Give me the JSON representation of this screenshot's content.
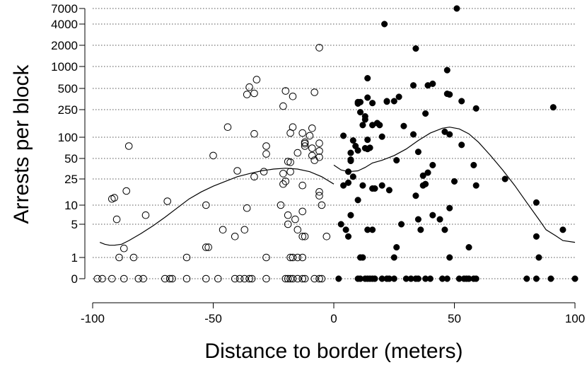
{
  "chart_data": {
    "type": "scatter",
    "title": "",
    "xlabel": "Distance to border (meters)",
    "ylabel": "Arrests per block",
    "xlim": [
      -100,
      100
    ],
    "x_ticks": [
      -100,
      -50,
      0,
      50,
      100
    ],
    "x_tick_labels": [
      "-100",
      "-50",
      "0",
      "50",
      "100"
    ],
    "y_scale": "pseudo-log",
    "y_ticks": [
      0,
      1,
      5,
      10,
      25,
      50,
      100,
      250,
      500,
      1000,
      2000,
      4000,
      7000
    ],
    "y_tick_labels": [
      "0",
      "1",
      "5",
      "10",
      "25",
      "50",
      "100",
      "250",
      "500",
      "1000",
      "2000",
      "4000",
      "7000"
    ],
    "grid": "horizontal dotted lines at each y tick",
    "series": [
      {
        "marker": "open-circle",
        "points": [
          [
            -98,
            0
          ],
          [
            -96,
            0
          ],
          [
            -92,
            0
          ],
          [
            -87,
            0
          ],
          [
            -81,
            0
          ],
          [
            -79,
            0
          ],
          [
            -70,
            0
          ],
          [
            -68,
            0
          ],
          [
            -67,
            0
          ],
          [
            -61,
            0
          ],
          [
            -53,
            0
          ],
          [
            -48,
            0
          ],
          [
            -41,
            0
          ],
          [
            -39,
            0
          ],
          [
            -37,
            0
          ],
          [
            -35,
            0
          ],
          [
            -34,
            0
          ],
          [
            -28,
            0
          ],
          [
            -20,
            0
          ],
          [
            -19,
            0
          ],
          [
            -18,
            0
          ],
          [
            -17,
            0
          ],
          [
            -15,
            0
          ],
          [
            -13,
            0
          ],
          [
            -12,
            0
          ],
          [
            -8,
            0
          ],
          [
            -6,
            0
          ],
          [
            -5,
            0
          ],
          [
            -89,
            1
          ],
          [
            -83,
            1
          ],
          [
            -61,
            1
          ],
          [
            -28,
            1
          ],
          [
            -18,
            1
          ],
          [
            -17,
            1
          ],
          [
            -15,
            1
          ],
          [
            -13,
            1
          ],
          [
            -53,
            1.8
          ],
          [
            -52,
            1.8
          ],
          [
            -87,
            1.7
          ],
          [
            -3,
            3
          ],
          [
            -13,
            3
          ],
          [
            -12,
            3
          ],
          [
            -46,
            4
          ],
          [
            -37,
            4
          ],
          [
            -15,
            4
          ],
          [
            -90,
            6
          ],
          [
            -78,
            7
          ],
          [
            -19,
            5
          ],
          [
            -16,
            6
          ],
          [
            -13,
            8
          ],
          [
            -41,
            3
          ],
          [
            -53,
            10
          ],
          [
            -69,
            11.5
          ],
          [
            -36,
            9
          ],
          [
            -22,
            10
          ],
          [
            -5,
            10
          ],
          [
            -92,
            12.5
          ],
          [
            -91,
            13
          ],
          [
            -86,
            16.5
          ],
          [
            -19,
            7
          ],
          [
            -6,
            16
          ],
          [
            -6,
            14
          ],
          [
            -13,
            20
          ],
          [
            -21,
            21
          ],
          [
            -20,
            23
          ],
          [
            -33,
            27
          ],
          [
            -40,
            33
          ],
          [
            -29,
            32
          ],
          [
            -21,
            30
          ],
          [
            -18,
            32
          ],
          [
            -19,
            45
          ],
          [
            -18,
            44
          ],
          [
            -15,
            60
          ],
          [
            -8,
            47
          ],
          [
            -9,
            55
          ],
          [
            -6,
            52
          ],
          [
            -9,
            70
          ],
          [
            -6,
            64
          ],
          [
            -12,
            75
          ],
          [
            -12,
            81
          ],
          [
            -12,
            85
          ],
          [
            -10,
            105
          ],
          [
            -9,
            135
          ],
          [
            -6,
            82
          ],
          [
            -18,
            115
          ],
          [
            -17,
            140
          ],
          [
            -13,
            115
          ],
          [
            -28,
            75
          ],
          [
            -28,
            58
          ],
          [
            -33,
            112
          ],
          [
            -44,
            140
          ],
          [
            -50,
            55
          ],
          [
            -85,
            75
          ],
          [
            -21,
            280
          ],
          [
            -20,
            460
          ],
          [
            -17,
            385
          ],
          [
            -33,
            425
          ],
          [
            -35,
            520
          ],
          [
            -32,
            660
          ],
          [
            -36,
            410
          ],
          [
            -8,
            440
          ],
          [
            -6,
            1850
          ]
        ]
      },
      {
        "marker": "filled-circle",
        "points": [
          [
            2,
            0
          ],
          [
            10,
            0
          ],
          [
            11,
            0
          ],
          [
            13,
            0
          ],
          [
            14,
            0
          ],
          [
            15,
            0
          ],
          [
            16,
            0
          ],
          [
            17,
            0
          ],
          [
            20,
            0
          ],
          [
            22,
            0
          ],
          [
            23,
            0
          ],
          [
            25,
            0
          ],
          [
            30,
            0
          ],
          [
            32,
            0
          ],
          [
            34,
            0
          ],
          [
            35,
            0
          ],
          [
            38,
            0
          ],
          [
            40,
            0
          ],
          [
            45,
            0
          ],
          [
            47,
            0
          ],
          [
            52,
            0
          ],
          [
            54,
            0
          ],
          [
            55,
            0
          ],
          [
            56,
            0
          ],
          [
            58,
            0
          ],
          [
            59,
            0
          ],
          [
            80,
            0
          ],
          [
            84,
            0
          ],
          [
            90,
            0
          ],
          [
            100,
            0
          ],
          [
            11,
            1
          ],
          [
            12,
            1
          ],
          [
            25,
            1
          ],
          [
            48,
            1
          ],
          [
            85,
            1
          ],
          [
            26,
            1.8
          ],
          [
            56,
            1.8
          ],
          [
            84,
            3
          ],
          [
            3,
            5
          ],
          [
            5,
            4
          ],
          [
            6,
            3
          ],
          [
            14,
            4
          ],
          [
            16,
            4
          ],
          [
            28,
            5
          ],
          [
            35,
            6
          ],
          [
            36,
            4
          ],
          [
            41,
            7
          ],
          [
            44,
            6
          ],
          [
            46,
            4
          ],
          [
            48,
            9
          ],
          [
            95,
            4
          ],
          [
            84,
            11
          ],
          [
            7,
            7
          ],
          [
            10,
            12
          ],
          [
            4,
            20
          ],
          [
            6,
            22
          ],
          [
            8,
            27
          ],
          [
            12,
            20
          ],
          [
            16,
            18
          ],
          [
            17,
            18
          ],
          [
            20,
            20
          ],
          [
            23,
            17
          ],
          [
            34,
            14
          ],
          [
            37,
            20
          ],
          [
            38,
            21
          ],
          [
            37,
            28
          ],
          [
            39,
            31
          ],
          [
            41,
            40
          ],
          [
            50,
            23
          ],
          [
            58,
            40
          ],
          [
            59,
            20
          ],
          [
            71,
            25
          ],
          [
            4,
            105
          ],
          [
            7,
            60
          ],
          [
            7,
            48
          ],
          [
            8,
            90
          ],
          [
            9,
            75
          ],
          [
            10,
            65
          ],
          [
            13,
            70
          ],
          [
            14,
            92
          ],
          [
            14,
            68
          ],
          [
            20,
            102
          ],
          [
            15,
            71
          ],
          [
            6,
            32
          ],
          [
            7,
            46
          ],
          [
            26,
            47
          ],
          [
            53,
            78
          ],
          [
            35,
            62
          ],
          [
            12,
            150
          ],
          [
            13,
            180
          ],
          [
            13,
            200
          ],
          [
            16,
            150
          ],
          [
            18,
            160
          ],
          [
            19,
            150
          ],
          [
            22,
            330
          ],
          [
            25,
            330
          ],
          [
            29,
            145
          ],
          [
            33,
            110
          ],
          [
            38,
            220
          ],
          [
            46,
            120
          ],
          [
            48,
            110
          ],
          [
            11,
            230
          ],
          [
            10,
            320
          ],
          [
            10,
            305
          ],
          [
            11,
            320
          ],
          [
            14,
            690
          ],
          [
            14,
            370
          ],
          [
            16,
            310
          ],
          [
            22,
            325
          ],
          [
            27,
            380
          ],
          [
            33,
            550
          ],
          [
            39,
            550
          ],
          [
            41,
            580
          ],
          [
            47,
            420
          ],
          [
            48,
            410
          ],
          [
            53,
            330
          ],
          [
            59,
            260
          ],
          [
            21,
            4000
          ],
          [
            34,
            1800
          ],
          [
            47,
            890
          ],
          [
            51,
            7000
          ],
          [
            91,
            270
          ]
        ]
      }
    ],
    "fitted_curves": [
      {
        "segment": "left of border",
        "points": [
          [
            -97,
            2.3
          ],
          [
            -95,
            2.1
          ],
          [
            -93,
            2.0
          ],
          [
            -91,
            2.0
          ],
          [
            -88,
            2.1
          ],
          [
            -85,
            2.5
          ],
          [
            -80,
            3.4
          ],
          [
            -75,
            4.7
          ],
          [
            -70,
            6.5
          ],
          [
            -65,
            9.0
          ],
          [
            -60,
            12.5
          ],
          [
            -55,
            16
          ],
          [
            -50,
            19.5
          ],
          [
            -45,
            23
          ],
          [
            -40,
            27
          ],
          [
            -35,
            30
          ],
          [
            -30,
            33
          ],
          [
            -25,
            35
          ],
          [
            -20,
            36
          ],
          [
            -15,
            35
          ],
          [
            -10,
            32
          ],
          [
            -5,
            27
          ],
          [
            0,
            21
          ]
        ]
      },
      {
        "segment": "right of border",
        "points": [
          [
            0,
            40
          ],
          [
            3,
            34
          ],
          [
            6,
            32
          ],
          [
            10,
            33
          ],
          [
            13,
            37
          ],
          [
            16,
            43
          ],
          [
            20,
            47
          ],
          [
            25,
            55
          ],
          [
            30,
            68
          ],
          [
            35,
            90
          ],
          [
            40,
            115
          ],
          [
            45,
            135
          ],
          [
            48,
            140
          ],
          [
            52,
            132
          ],
          [
            56,
            112
          ],
          [
            60,
            85
          ],
          [
            65,
            55
          ],
          [
            70,
            34
          ],
          [
            75,
            20
          ],
          [
            80,
            11
          ],
          [
            85,
            6
          ],
          [
            88,
            4
          ],
          [
            92,
            3.1
          ],
          [
            95,
            2.5
          ],
          [
            100,
            2.3
          ]
        ]
      }
    ]
  }
}
